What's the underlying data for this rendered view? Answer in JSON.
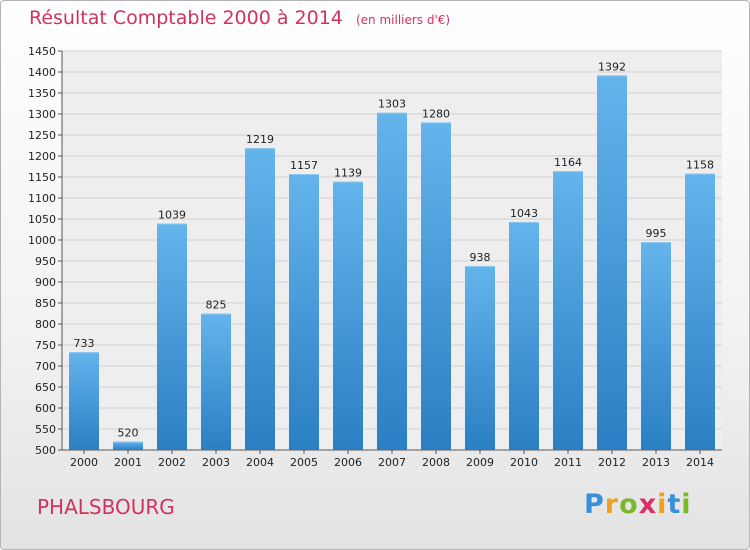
{
  "title": "Résultat Comptable 2000 à 2014",
  "unit": "(en milliers d'€)",
  "commune": "PHALSBOURG",
  "logo": {
    "text": "Proxiti",
    "letters": [
      "P",
      "r",
      "o",
      "x",
      "i",
      "t",
      "i"
    ],
    "colors": [
      "#3a8fd9",
      "#f0a020",
      "#7ab828",
      "#d8306a",
      "#f0a020",
      "#3a8fd9",
      "#7ab828"
    ]
  },
  "colors": {
    "bar_light": "#64b4ec",
    "bar_dark": "#2a7fc4",
    "title": "#d1335f"
  },
  "chart_data": {
    "type": "bar",
    "categories": [
      "2000",
      "2001",
      "2002",
      "2003",
      "2004",
      "2005",
      "2006",
      "2007",
      "2008",
      "2009",
      "2010",
      "2011",
      "2012",
      "2013",
      "2014"
    ],
    "values": [
      733,
      520,
      1039,
      825,
      1219,
      1157,
      1139,
      1303,
      1280,
      938,
      1043,
      1164,
      1392,
      995,
      1158
    ],
    "ylim": [
      500,
      1450
    ],
    "ytick_step": 50,
    "grid": true,
    "title": "Résultat Comptable 2000 à 2014",
    "xlabel": "",
    "ylabel": ""
  }
}
